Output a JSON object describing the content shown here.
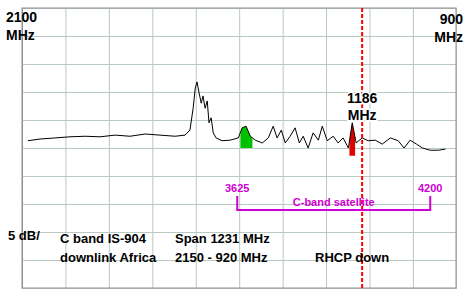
{
  "chart_data": {
    "type": "line",
    "x": [
      2133,
      2099,
      2056,
      2014,
      1971,
      1929,
      1886,
      1844,
      1801,
      1759,
      1716,
      1688,
      1674,
      1665,
      1659,
      1654,
      1648,
      1642,
      1637,
      1631,
      1625,
      1620,
      1614,
      1608,
      1600,
      1583,
      1560,
      1537,
      1526,
      1515,
      1503,
      1489,
      1469,
      1452,
      1438,
      1427,
      1415,
      1404,
      1390,
      1376,
      1364,
      1353,
      1339,
      1325,
      1310,
      1299,
      1285,
      1268,
      1254,
      1240,
      1225,
      1214,
      1203,
      1186,
      1169,
      1149,
      1129,
      1106,
      1084,
      1067,
      1050,
      1032,
      1015,
      993,
      970,
      950
    ],
    "series": [
      {
        "color": "#000000",
        "values": [
          26.3,
          26.6,
          26.8,
          27.0,
          27.1,
          27.0,
          27.3,
          27.1,
          27.5,
          27.3,
          27.1,
          27.3,
          28.2,
          32.1,
          35.7,
          36.8,
          34.8,
          33.0,
          34.3,
          32.1,
          33.4,
          29.5,
          30.4,
          27.7,
          26.8,
          26.3,
          26.4,
          26.8,
          28.6,
          28.9,
          27.1,
          26.4,
          25.9,
          26.8,
          28.9,
          26.8,
          28.2,
          25.9,
          27.1,
          28.6,
          25.9,
          27.1,
          25.0,
          27.7,
          26.4,
          28.9,
          26.3,
          27.1,
          25.9,
          26.8,
          25.0,
          29.5,
          25.9,
          26.8,
          26.3,
          26.4,
          25.7,
          26.8,
          26.3,
          25.0,
          26.4,
          25.7,
          25.0,
          24.6,
          24.6,
          24.8
        ]
      }
    ],
    "xlim": [
      2150,
      920
    ],
    "xticks": [
      2150,
      2026.9,
      1903.8,
      1780.7,
      1657.6,
      1534.5,
      1411.4,
      1288.3,
      1165.2,
      1042.1,
      920
    ],
    "ylim": [
      0,
      50
    ],
    "yticks": [
      0,
      5,
      10,
      15,
      20,
      25,
      30,
      35,
      40,
      45,
      50
    ],
    "grid": true,
    "tick_labels": false,
    "highlights": [
      {
        "x": [
          1531,
          1497
        ],
        "floor": 25.0,
        "color": "#00c000"
      },
      {
        "x": [
          1222,
          1206
        ],
        "floor": 23.6,
        "color": "#e00000"
      }
    ],
    "marker": {
      "x": 1186,
      "label": [
        "1186",
        "MHz"
      ],
      "color": "#ff0000",
      "line_style": "dashed"
    },
    "band": {
      "label": "C-band satellite",
      "edge_labels": [
        3625,
        4200
      ],
      "x": [
        1540,
        993
      ],
      "color": "#d000d0"
    },
    "annotations": [
      {
        "text": [
          "2100",
          "MHz"
        ]
      },
      {
        "text": [
          "900",
          "MHz"
        ]
      },
      {
        "text": [
          "5 dB/"
        ]
      },
      {
        "text": [
          "C band IS-904",
          "downlink Africa"
        ]
      },
      {
        "text": [
          "Span 1231 MHz",
          "2150 - 920 MHz"
        ]
      },
      {
        "text": [
          "RHCP down"
        ]
      }
    ]
  }
}
